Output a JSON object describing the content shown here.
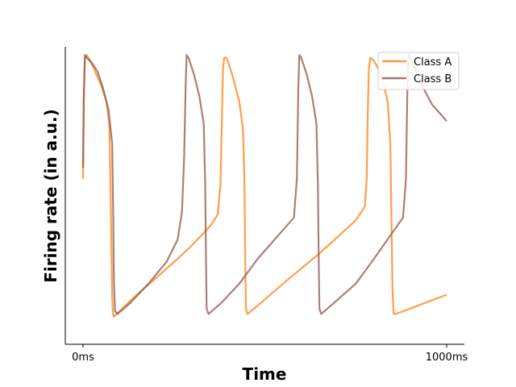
{
  "chart_data": {
    "type": "line",
    "title": "",
    "xlabel": "Time",
    "ylabel": "Firing rate (in a.u.)",
    "x_tick_labels": [
      "0ms",
      "1000ms"
    ],
    "xlim": [
      0,
      1000
    ],
    "ylim": [
      -0.08,
      1.0
    ],
    "grid": false,
    "legend_placement": "top-right",
    "series": [
      {
        "name": "Class A",
        "color": "#ff7f0e",
        "points": [
          [
            0,
            0.52
          ],
          [
            2,
            0.8
          ],
          [
            5,
            0.96
          ],
          [
            10,
            0.97
          ],
          [
            20,
            0.95
          ],
          [
            30,
            0.92
          ],
          [
            50,
            0.86
          ],
          [
            65,
            0.8
          ],
          [
            72,
            0.72
          ],
          [
            76,
            0.45
          ],
          [
            80,
            0.1
          ],
          [
            82,
            0.03
          ],
          [
            85,
            0.02
          ],
          [
            100,
            0.04
          ],
          [
            140,
            0.09
          ],
          [
            200,
            0.16
          ],
          [
            260,
            0.23
          ],
          [
            300,
            0.28
          ],
          [
            350,
            0.35
          ],
          [
            370,
            0.39
          ],
          [
            378,
            0.5
          ],
          [
            382,
            0.75
          ],
          [
            385,
            0.92
          ],
          [
            388,
            0.96
          ],
          [
            395,
            0.96
          ],
          [
            410,
            0.9
          ],
          [
            430,
            0.8
          ],
          [
            440,
            0.7
          ],
          [
            444,
            0.5
          ],
          [
            446,
            0.25
          ],
          [
            448,
            0.05
          ],
          [
            452,
            0.03
          ],
          [
            480,
            0.06
          ],
          [
            550,
            0.14
          ],
          [
            650,
            0.25
          ],
          [
            750,
            0.37
          ],
          [
            775,
            0.42
          ],
          [
            780,
            0.52
          ],
          [
            783,
            0.75
          ],
          [
            786,
            0.92
          ],
          [
            790,
            0.96
          ],
          [
            800,
            0.95
          ],
          [
            820,
            0.9
          ],
          [
            838,
            0.8
          ],
          [
            845,
            0.65
          ],
          [
            848,
            0.4
          ],
          [
            851,
            0.12
          ],
          [
            854,
            0.03
          ],
          [
            860,
            0.03
          ],
          [
            900,
            0.05
          ],
          [
            960,
            0.08
          ],
          [
            1000,
            0.1
          ]
        ]
      },
      {
        "name": "Class B",
        "color": "#8c564b",
        "points": [
          [
            0,
            0.56
          ],
          [
            2,
            0.82
          ],
          [
            5,
            0.97
          ],
          [
            10,
            0.96
          ],
          [
            25,
            0.94
          ],
          [
            40,
            0.91
          ],
          [
            55,
            0.85
          ],
          [
            70,
            0.77
          ],
          [
            80,
            0.65
          ],
          [
            83,
            0.4
          ],
          [
            85,
            0.15
          ],
          [
            88,
            0.04
          ],
          [
            95,
            0.03
          ],
          [
            130,
            0.07
          ],
          [
            180,
            0.14
          ],
          [
            230,
            0.22
          ],
          [
            260,
            0.3
          ],
          [
            272,
            0.4
          ],
          [
            278,
            0.6
          ],
          [
            282,
            0.85
          ],
          [
            285,
            0.97
          ],
          [
            290,
            0.96
          ],
          [
            305,
            0.9
          ],
          [
            320,
            0.82
          ],
          [
            332,
            0.72
          ],
          [
            336,
            0.5
          ],
          [
            338,
            0.25
          ],
          [
            340,
            0.05
          ],
          [
            345,
            0.03
          ],
          [
            380,
            0.07
          ],
          [
            430,
            0.14
          ],
          [
            480,
            0.23
          ],
          [
            580,
            0.38
          ],
          [
            588,
            0.52
          ],
          [
            592,
            0.85
          ],
          [
            595,
            0.97
          ],
          [
            600,
            0.96
          ],
          [
            615,
            0.9
          ],
          [
            630,
            0.82
          ],
          [
            642,
            0.72
          ],
          [
            646,
            0.5
          ],
          [
            648,
            0.25
          ],
          [
            650,
            0.05
          ],
          [
            655,
            0.03
          ],
          [
            690,
            0.07
          ],
          [
            750,
            0.14
          ],
          [
            800,
            0.23
          ],
          [
            880,
            0.38
          ],
          [
            888,
            0.52
          ],
          [
            892,
            0.85
          ],
          [
            895,
            0.97
          ],
          [
            900,
            0.96
          ],
          [
            920,
            0.9
          ],
          [
            940,
            0.84
          ],
          [
            960,
            0.79
          ],
          [
            980,
            0.76
          ],
          [
            1000,
            0.73
          ]
        ]
      }
    ]
  }
}
